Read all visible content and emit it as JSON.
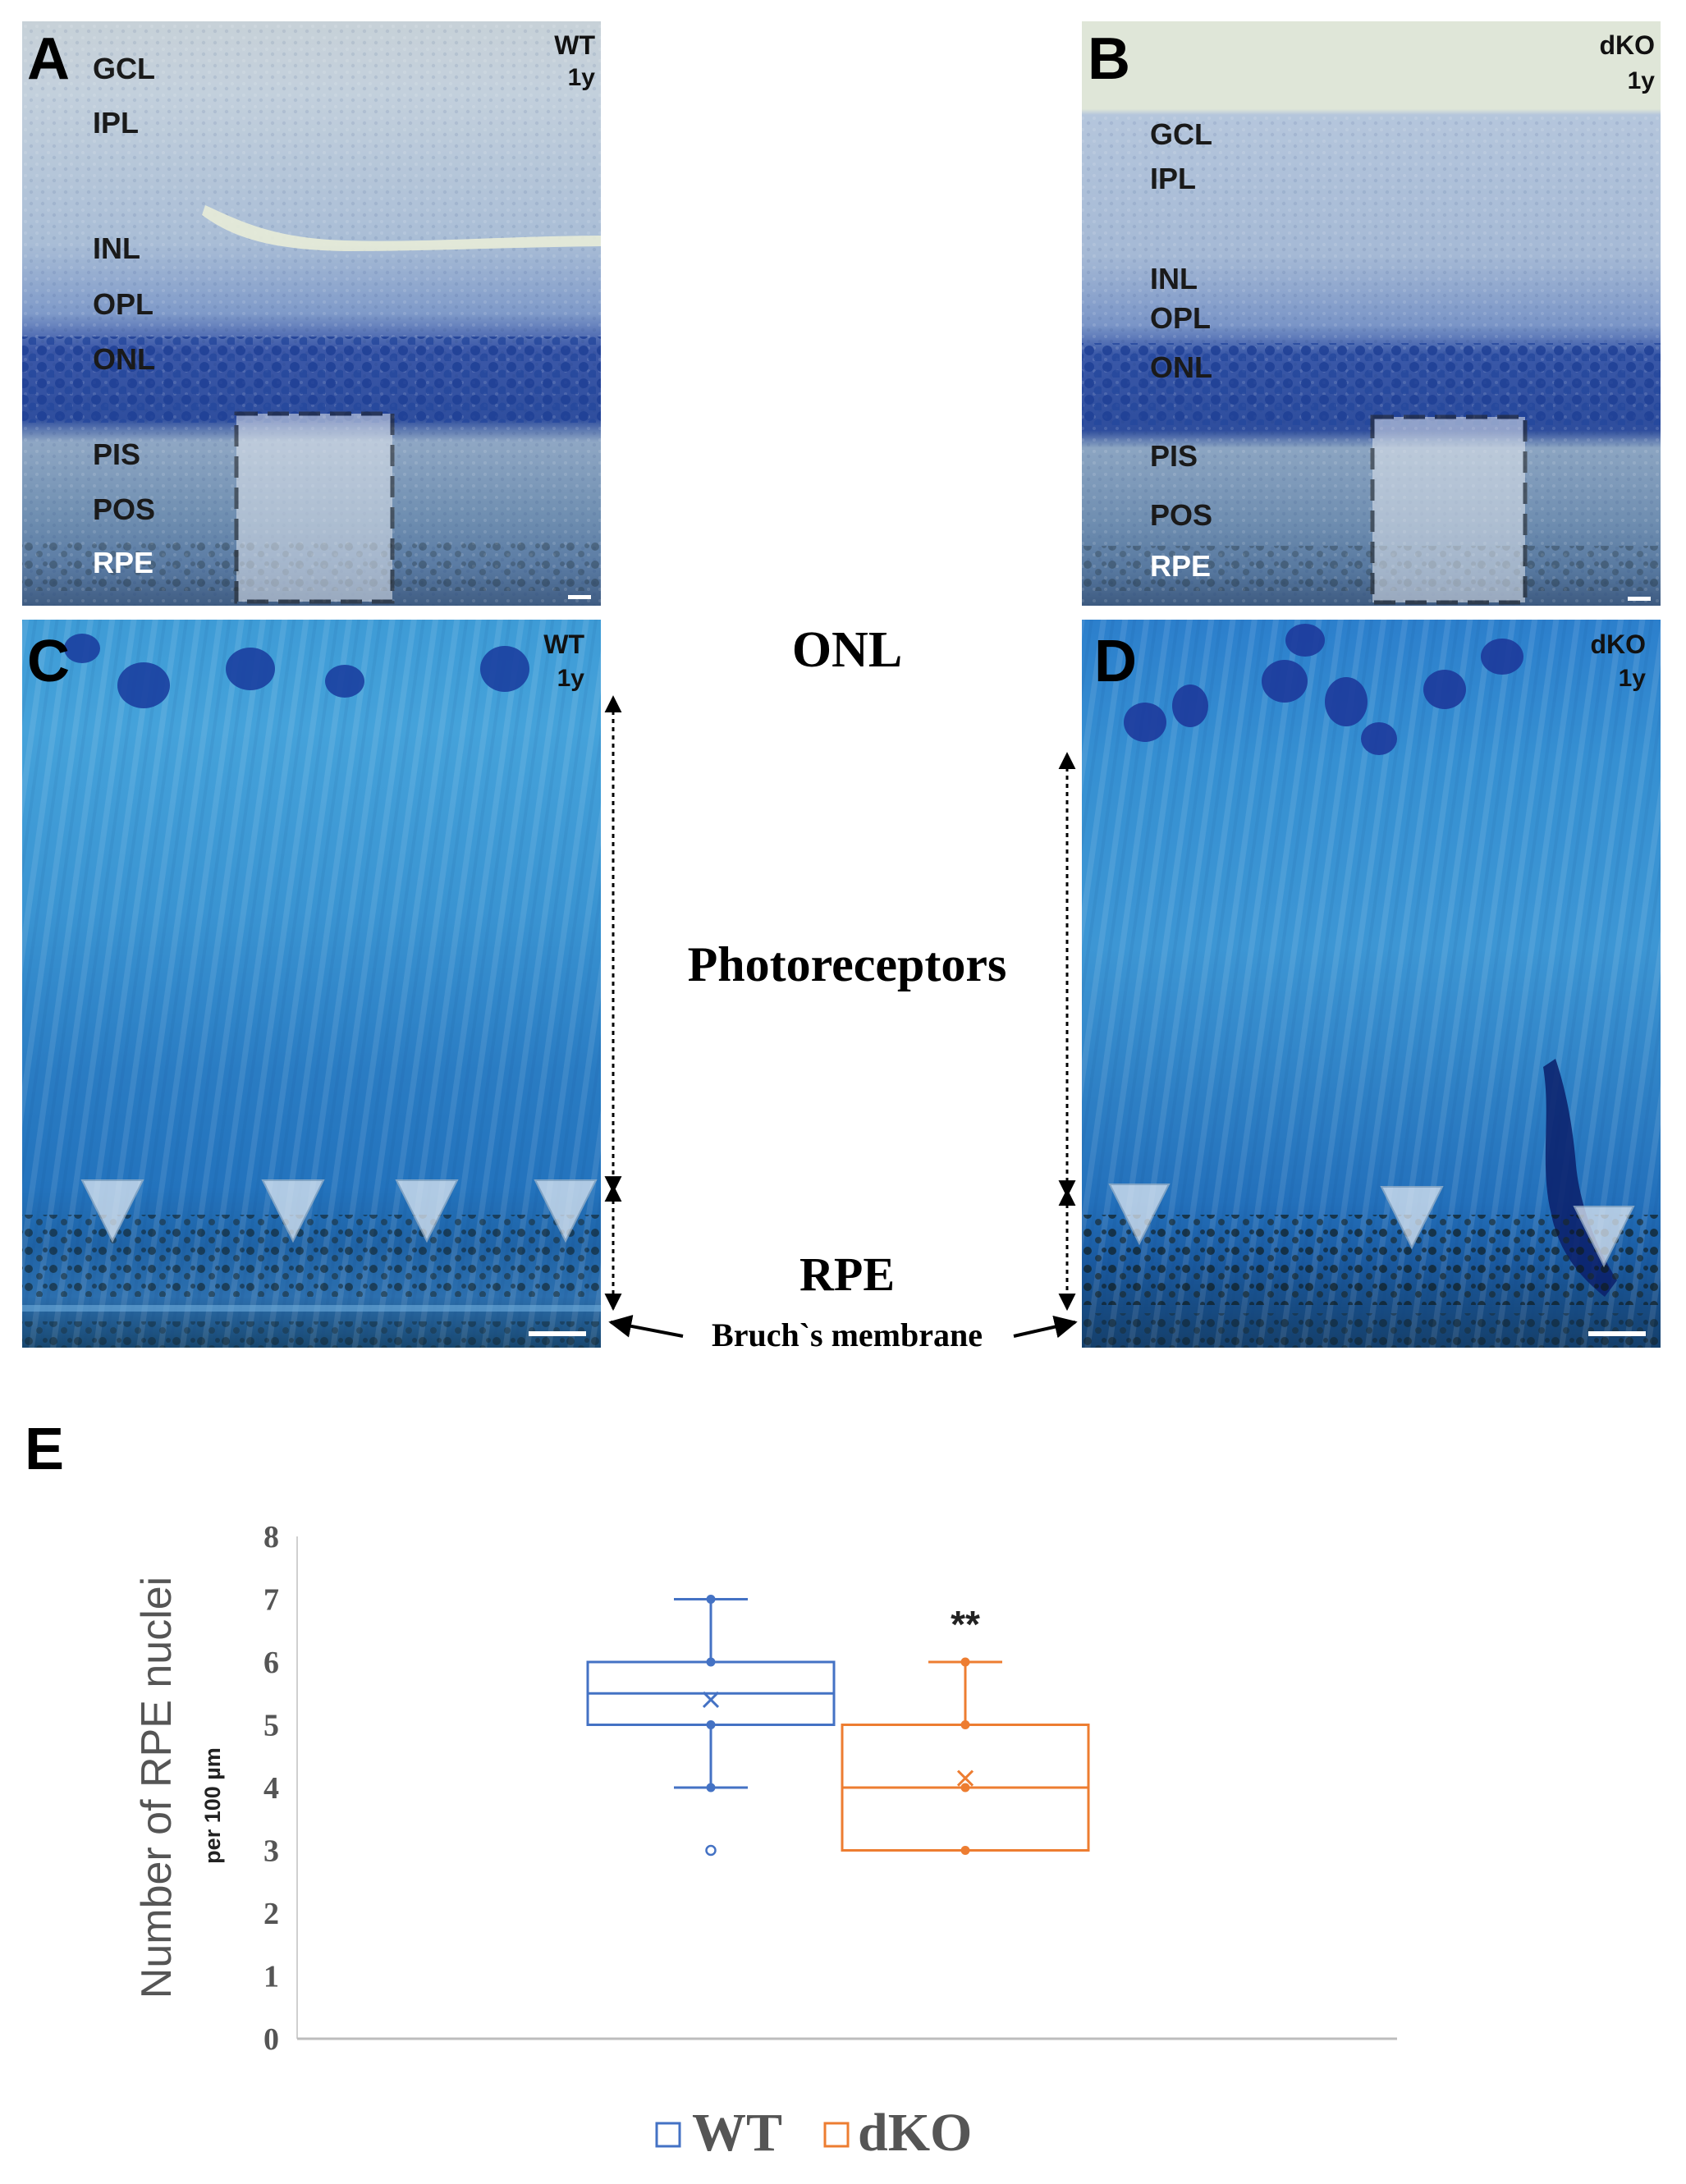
{
  "panels": {
    "A": {
      "letter": "A",
      "condition": "WT",
      "age": "1y",
      "layers": [
        "GCL",
        "IPL",
        "INL",
        "OPL",
        "ONL",
        "PIS",
        "POS",
        "RPE"
      ]
    },
    "B": {
      "letter": "B",
      "condition": "dKO",
      "age": "1y",
      "layers": [
        "GCL",
        "IPL",
        "INL",
        "OPL",
        "ONL",
        "PIS",
        "POS",
        "RPE"
      ]
    },
    "C": {
      "letter": "C",
      "condition": "WT",
      "age": "1y"
    },
    "D": {
      "letter": "D",
      "condition": "dKO",
      "age": "1y"
    },
    "E": {
      "letter": "E"
    }
  },
  "center_labels": {
    "onl": "ONL",
    "photoreceptors": "Photoreceptors",
    "rpe": "RPE",
    "bruch": "Bruch`s membrane"
  },
  "colors": {
    "wt": "#4472C4",
    "dko": "#ED7D31",
    "stain_light": "#9fb6d1",
    "stain_dark": "#2d4f9e",
    "zoom_light": "#4aa0d8",
    "zoom_dark": "#1d5fb0"
  },
  "chart_data": {
    "type": "box",
    "title": "",
    "ylabel": "Number of RPE nuclei",
    "ylabel_sub": "per 100 µm",
    "ylim": [
      0,
      8
    ],
    "yticks": [
      "0",
      "1",
      "2",
      "3",
      "4",
      "5",
      "6",
      "7",
      "8"
    ],
    "significance": "**",
    "legend_position": "bottom",
    "series": [
      {
        "name": "WT",
        "q1": 5,
        "median": 5.5,
        "q3": 6,
        "mean": 5.4,
        "whisker_low": 4,
        "whisker_high": 7,
        "points": [
          4,
          5,
          6,
          7
        ],
        "outliers": [
          3
        ]
      },
      {
        "name": "dKO",
        "q1": 3,
        "median": 4,
        "q3": 5,
        "mean": 4.15,
        "whisker_low": 3,
        "whisker_high": 6,
        "points": [
          3,
          4,
          5,
          6
        ],
        "outliers": []
      }
    ]
  }
}
